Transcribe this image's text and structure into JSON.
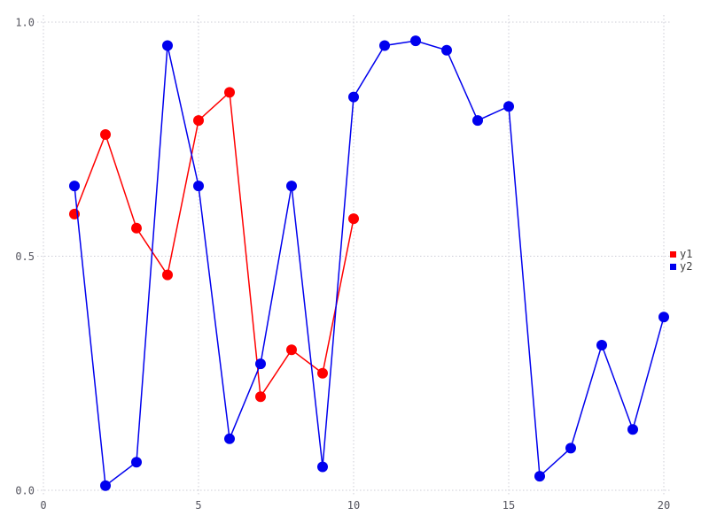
{
  "chart_data": {
    "type": "line",
    "title": "",
    "xlabel": "",
    "ylabel": "",
    "xlim": [
      0,
      20
    ],
    "ylim": [
      0.0,
      1.0
    ],
    "grid": true,
    "grid_style": "dotted",
    "legend_position": "right-center",
    "x_tick_labels": [
      "0",
      "5",
      "10",
      "15",
      "20"
    ],
    "y_tick_labels": [
      "0.0",
      "0.5",
      "1.0"
    ],
    "marker": "circle",
    "series": [
      {
        "name": "y1",
        "color": "#ff0000",
        "x": [
          1,
          2,
          3,
          4,
          5,
          6,
          7,
          8,
          9,
          10
        ],
        "values": [
          0.59,
          0.76,
          0.56,
          0.46,
          0.79,
          0.85,
          0.2,
          0.3,
          0.25,
          0.58
        ]
      },
      {
        "name": "y2",
        "color": "#0000ee",
        "x": [
          1,
          2,
          3,
          4,
          5,
          6,
          7,
          8,
          9,
          10,
          11,
          12,
          13,
          14,
          15,
          16,
          17,
          18,
          19,
          20
        ],
        "values": [
          0.65,
          0.01,
          0.06,
          0.95,
          0.65,
          0.11,
          0.27,
          0.65,
          0.05,
          0.84,
          0.95,
          0.96,
          0.94,
          0.79,
          0.82,
          0.03,
          0.09,
          0.31,
          0.13,
          0.37
        ]
      }
    ]
  }
}
